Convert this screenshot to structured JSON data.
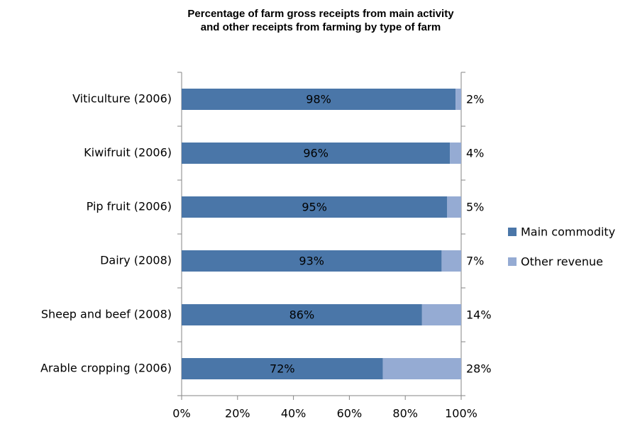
{
  "chart_data": {
    "type": "stacked_barh",
    "title": [
      "Percentage of farm gross receipts from main activity",
      "and other receipts from farming by type of farm"
    ],
    "categories": [
      "Viticulture (2006)",
      "Kiwifruit (2006)",
      "Pip fruit (2006)",
      "Dairy (2008)",
      "Sheep and beef (2008)",
      "Arable cropping (2006)"
    ],
    "series": [
      {
        "name": "Main commodity",
        "color": "#4a76a8",
        "values": [
          98,
          96,
          95,
          93,
          86,
          72
        ],
        "value_labels": [
          "98%",
          "96%",
          "95%",
          "93%",
          "86%",
          "72%"
        ]
      },
      {
        "name": "Other revenue",
        "color": "#95abd3",
        "values": [
          2,
          4,
          5,
          7,
          14,
          28
        ],
        "value_labels": [
          "2%",
          "4%",
          "5%",
          "7%",
          "14%",
          "28%"
        ]
      }
    ],
    "xlim": [
      0,
      100
    ],
    "xticks": [
      {
        "value": 0,
        "label": "0%"
      },
      {
        "value": 20,
        "label": "20%"
      },
      {
        "value": 40,
        "label": "40%"
      },
      {
        "value": 60,
        "label": "60%"
      },
      {
        "value": 80,
        "label": "80%"
      },
      {
        "value": 100,
        "label": "100%"
      }
    ],
    "grid": false,
    "legend": "right"
  }
}
